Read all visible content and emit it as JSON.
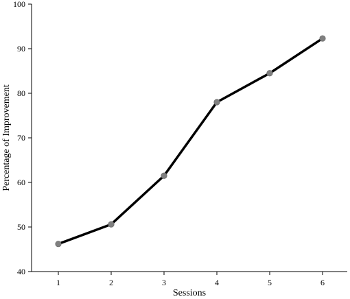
{
  "chart_data": {
    "type": "line",
    "title": "",
    "xlabel": "Sessions",
    "ylabel": "Percentage of Improvement",
    "x": [
      1,
      2,
      3,
      4,
      5,
      6
    ],
    "xticks": [
      "1",
      "2",
      "3",
      "4",
      "5",
      "6"
    ],
    "ylim": [
      40,
      100
    ],
    "yticks": [
      "40",
      "50",
      "60",
      "70",
      "80",
      "90",
      "100"
    ],
    "series": [
      {
        "values": [
          46.2,
          50.6,
          61.5,
          78.0,
          84.5,
          92.3
        ]
      }
    ],
    "grid": false,
    "legend": "none",
    "colors": {
      "line": "#000000",
      "marker": "#808080",
      "axis": "#000000"
    }
  }
}
